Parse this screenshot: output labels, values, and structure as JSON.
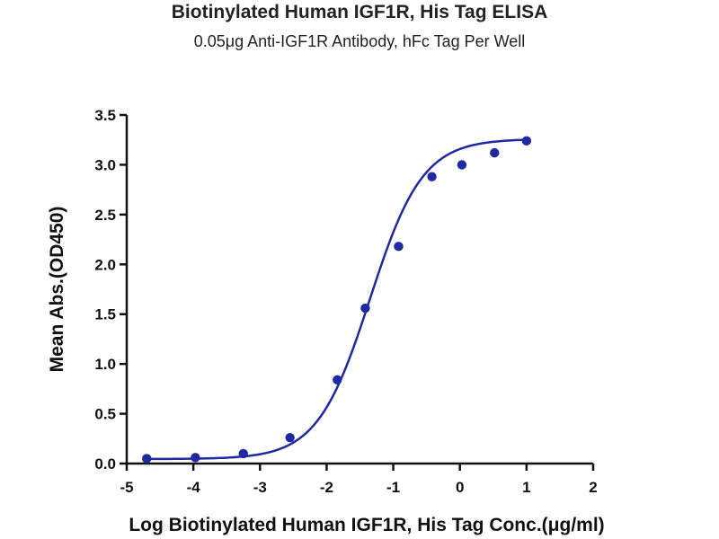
{
  "chart_data": {
    "type": "scatter",
    "title": "Biotinylated Human IGF1R, His Tag ELISA",
    "subtitle": "0.05μg Anti-IGF1R Antibody, hFc Tag Per Well",
    "xlabel": "Log Biotinylated Human IGF1R, His Tag Conc.(μg/ml)",
    "ylabel": "Mean Abs.(OD450)",
    "xlim": [
      -5,
      2
    ],
    "ylim": [
      0,
      3.5
    ],
    "x_ticks": [
      -5,
      -4,
      -3,
      -2,
      -1,
      0,
      1,
      2
    ],
    "y_ticks": [
      0.0,
      0.5,
      1.0,
      1.5,
      2.0,
      2.5,
      3.0,
      3.5
    ],
    "x_tick_labels": [
      "-5",
      "-4",
      "-3",
      "-2",
      "-1",
      "0",
      "1",
      "2"
    ],
    "y_tick_labels": [
      "0.0",
      "0.5",
      "1.0",
      "1.5",
      "2.0",
      "2.5",
      "3.0",
      "3.5"
    ],
    "grid": false,
    "series": [
      {
        "x": [
          -4.7,
          -3.97,
          -3.25,
          -2.55,
          -1.84,
          -1.42,
          -0.92,
          -0.42,
          0.03,
          0.52,
          1.0
        ],
        "y": [
          0.05,
          0.06,
          0.1,
          0.26,
          0.84,
          1.56,
          2.18,
          2.88,
          3.0,
          3.12,
          3.24
        ],
        "fit": {
          "type": "4PL",
          "bottom": 0.045,
          "top": 3.26,
          "log_ec50": -1.35,
          "hill_slope": 1.1
        }
      }
    ],
    "colors": {
      "series": "#1f2aa0",
      "axis": "#111111"
    }
  }
}
